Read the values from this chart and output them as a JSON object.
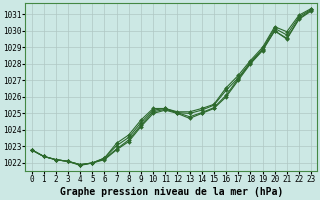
{
  "x": [
    0,
    1,
    2,
    3,
    4,
    5,
    6,
    7,
    8,
    9,
    10,
    11,
    12,
    13,
    14,
    15,
    16,
    17,
    18,
    19,
    20,
    21,
    22,
    23
  ],
  "line1": [
    1022.8,
    1022.4,
    1022.2,
    1022.1,
    1021.9,
    1022.0,
    1022.2,
    1022.8,
    1023.3,
    1024.2,
    1025.0,
    1025.2,
    1025.0,
    1024.7,
    1025.0,
    1025.3,
    1026.0,
    1027.0,
    1028.0,
    1028.8,
    1030.0,
    1029.5,
    1030.7,
    1031.2
  ],
  "line2": [
    1022.8,
    1022.4,
    1022.2,
    1022.1,
    1021.9,
    1022.0,
    1022.25,
    1022.85,
    1023.4,
    1024.3,
    1025.1,
    1025.25,
    1025.05,
    1024.8,
    1025.05,
    1025.35,
    1026.1,
    1027.1,
    1028.05,
    1028.85,
    1030.0,
    1029.55,
    1030.75,
    1031.25
  ],
  "line3": [
    1022.8,
    1022.4,
    1022.2,
    1022.1,
    1021.9,
    1022.0,
    1022.3,
    1023.05,
    1023.55,
    1024.45,
    1025.2,
    1025.3,
    1025.05,
    1025.0,
    1025.2,
    1025.5,
    1026.4,
    1027.15,
    1028.1,
    1028.9,
    1030.15,
    1029.75,
    1030.85,
    1031.3
  ],
  "line4": [
    1022.8,
    1022.4,
    1022.2,
    1022.1,
    1021.85,
    1022.0,
    1022.3,
    1023.2,
    1023.7,
    1024.6,
    1025.3,
    1025.3,
    1025.1,
    1025.1,
    1025.3,
    1025.55,
    1026.55,
    1027.3,
    1028.2,
    1029.0,
    1030.25,
    1029.95,
    1030.95,
    1031.35
  ],
  "ylim": [
    1021.5,
    1031.7
  ],
  "yticks": [
    1022,
    1023,
    1024,
    1025,
    1026,
    1027,
    1028,
    1029,
    1030,
    1031
  ],
  "xlim": [
    -0.5,
    23.5
  ],
  "xticks": [
    0,
    1,
    2,
    3,
    4,
    5,
    6,
    7,
    8,
    9,
    10,
    11,
    12,
    13,
    14,
    15,
    16,
    17,
    18,
    19,
    20,
    21,
    22,
    23
  ],
  "xlabel": "Graphe pression niveau de la mer (hPa)",
  "line_color": "#2d6a2d",
  "bg_color": "#cce8e4",
  "grid_color": "#b0c8c4",
  "marker": "D",
  "marker_size": 2.0,
  "linewidth": 0.8,
  "xlabel_fontsize": 7,
  "tick_fontsize": 5.5
}
